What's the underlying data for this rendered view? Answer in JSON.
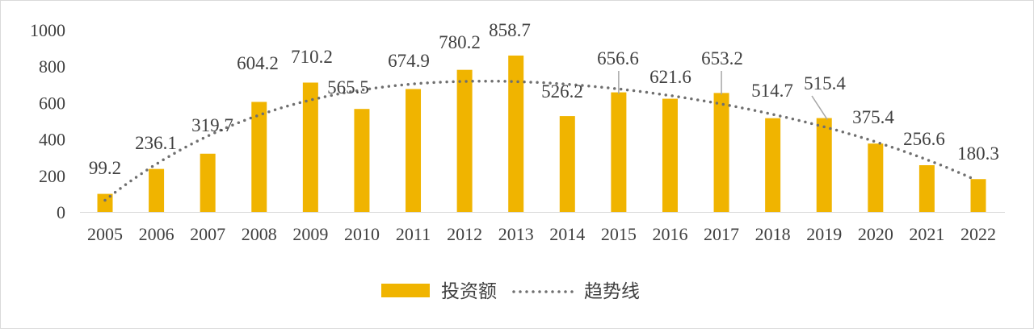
{
  "chart_data": {
    "type": "bar",
    "categories": [
      "2005",
      "2006",
      "2007",
      "2008",
      "2009",
      "2010",
      "2011",
      "2012",
      "2013",
      "2014",
      "2015",
      "2016",
      "2017",
      "2018",
      "2019",
      "2020",
      "2021",
      "2022"
    ],
    "series": [
      {
        "name": "投资额",
        "values": [
          99.2,
          236.1,
          319.7,
          604.2,
          710.2,
          565.5,
          674.9,
          780.2,
          858.7,
          526.2,
          656.6,
          621.6,
          653.2,
          514.7,
          515.4,
          375.4,
          256.6,
          180.3
        ],
        "color": "#F0B400"
      }
    ],
    "trendline": {
      "name": "趋势线",
      "type": "polynomial",
      "style": "dotted",
      "color": "#6f6f6f"
    },
    "ylim": [
      0,
      1000
    ],
    "yticks": [
      "0",
      "200",
      "400",
      "600",
      "800",
      "1000"
    ],
    "grid": false,
    "legend": "bottom",
    "data_labels": true
  }
}
